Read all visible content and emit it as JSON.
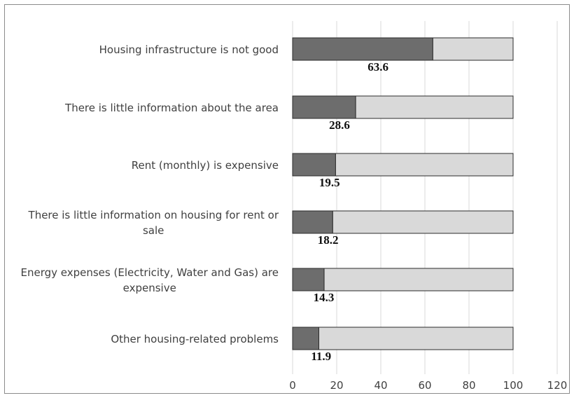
{
  "chart_data": {
    "type": "bar",
    "orientation": "horizontal",
    "stacked": true,
    "categories": [
      "Housing infrastructure is not good",
      "There is little information about the area",
      "Rent (monthly) is expensive",
      "There is little information on housing for rent or sale",
      "Energy expenses (Electricity, Water and Gas) are expensive",
      "Other housing-related problems"
    ],
    "category_lines": [
      [
        "Housing infrastructure is not good"
      ],
      [
        "There is little information about the area"
      ],
      [
        "Rent (monthly) is expensive"
      ],
      [
        "There is little information on housing for rent or",
        "sale"
      ],
      [
        "Energy expenses (Electricity, Water and Gas) are",
        "expensive"
      ],
      [
        "Other housing-related problems"
      ]
    ],
    "series": [
      {
        "values": [
          63.6,
          28.6,
          19.5,
          18.2,
          14.3,
          11.9
        ],
        "color": "#6d6d6d"
      },
      {
        "values": [
          36.4,
          71.4,
          80.5,
          81.8,
          85.7,
          88.1
        ],
        "color": "#d9d9d9"
      }
    ],
    "data_labels": [
      "63.6",
      "28.6",
      "19.5",
      "18.2",
      "14.3",
      "11.9"
    ],
    "xlim": [
      0,
      120
    ],
    "xticks": [
      0,
      20,
      40,
      60,
      80,
      100,
      120
    ],
    "tick_labels": [
      "0",
      "20",
      "40",
      "60",
      "80",
      "100",
      "120"
    ],
    "grid": true,
    "legend": false,
    "title": "",
    "xlabel": "",
    "ylabel": ""
  }
}
